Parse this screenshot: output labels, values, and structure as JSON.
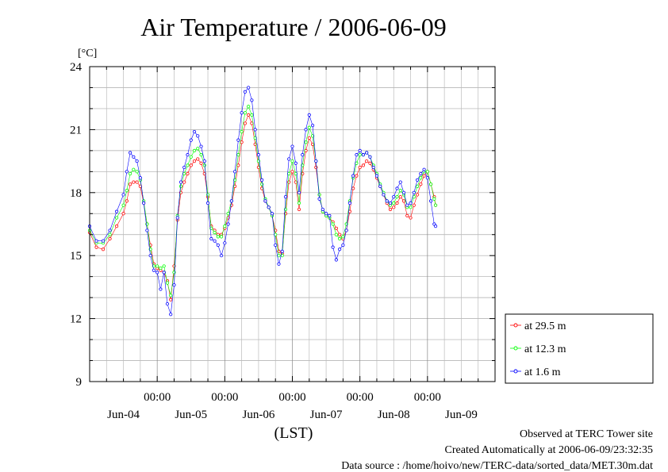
{
  "chart_data": {
    "type": "line",
    "title": "Air Temperature / 2006-06-09",
    "ylabel": "[°C]",
    "xlabel": "(LST)",
    "ylim": [
      9,
      24
    ],
    "yticks": [
      "9",
      "12",
      "15",
      "18",
      "21",
      "24"
    ],
    "xlim": [
      0,
      6
    ],
    "midnight_label": "00:00",
    "day_labels": [
      "Jun-04",
      "Jun-05",
      "Jun-06",
      "Jun-07",
      "Jun-08",
      "Jun-09"
    ],
    "grid": true,
    "legend_position": "right",
    "series": [
      {
        "name": "at 29.5 m",
        "color": "#ff0000",
        "values": [
          [
            0.0,
            16.1
          ],
          [
            0.1,
            15.4
          ],
          [
            0.2,
            15.3
          ],
          [
            0.3,
            15.8
          ],
          [
            0.4,
            16.4
          ],
          [
            0.5,
            17.0
          ],
          [
            0.55,
            17.6
          ],
          [
            0.6,
            18.4
          ],
          [
            0.65,
            18.5
          ],
          [
            0.7,
            18.5
          ],
          [
            0.75,
            18.3
          ],
          [
            0.8,
            17.5
          ],
          [
            0.85,
            16.5
          ],
          [
            0.9,
            15.5
          ],
          [
            0.95,
            14.6
          ],
          [
            1.0,
            14.4
          ],
          [
            1.05,
            14.3
          ],
          [
            1.1,
            14.2
          ],
          [
            1.15,
            13.8
          ],
          [
            1.2,
            12.9
          ],
          [
            1.25,
            14.5
          ],
          [
            1.3,
            16.7
          ],
          [
            1.35,
            18.0
          ],
          [
            1.4,
            18.5
          ],
          [
            1.45,
            18.9
          ],
          [
            1.5,
            19.3
          ],
          [
            1.55,
            19.5
          ],
          [
            1.6,
            19.6
          ],
          [
            1.65,
            19.4
          ],
          [
            1.7,
            18.9
          ],
          [
            1.75,
            17.8
          ],
          [
            1.8,
            16.4
          ],
          [
            1.85,
            16.2
          ],
          [
            1.9,
            16.0
          ],
          [
            1.95,
            16.0
          ],
          [
            2.0,
            16.3
          ],
          [
            2.05,
            16.8
          ],
          [
            2.1,
            17.4
          ],
          [
            2.15,
            18.3
          ],
          [
            2.2,
            19.3
          ],
          [
            2.25,
            20.4
          ],
          [
            2.3,
            21.3
          ],
          [
            2.35,
            21.7
          ],
          [
            2.4,
            21.3
          ],
          [
            2.45,
            20.3
          ],
          [
            2.5,
            19.2
          ],
          [
            2.55,
            18.2
          ],
          [
            2.6,
            17.6
          ],
          [
            2.65,
            17.3
          ],
          [
            2.7,
            16.9
          ],
          [
            2.75,
            16.2
          ],
          [
            2.8,
            15.2
          ],
          [
            2.85,
            15.1
          ],
          [
            2.9,
            17.0
          ],
          [
            2.95,
            18.5
          ],
          [
            3.0,
            19.0
          ],
          [
            3.05,
            18.5
          ],
          [
            3.1,
            17.2
          ],
          [
            3.15,
            18.9
          ],
          [
            3.2,
            20.0
          ],
          [
            3.25,
            20.6
          ],
          [
            3.3,
            20.3
          ],
          [
            3.35,
            19.2
          ],
          [
            3.4,
            17.9
          ],
          [
            3.45,
            17.1
          ],
          [
            3.5,
            16.9
          ],
          [
            3.55,
            16.8
          ],
          [
            3.6,
            16.6
          ],
          [
            3.65,
            16.3
          ],
          [
            3.7,
            16.0
          ],
          [
            3.75,
            15.8
          ],
          [
            3.8,
            16.2
          ],
          [
            3.85,
            17.1
          ],
          [
            3.9,
            18.2
          ],
          [
            3.95,
            18.8
          ],
          [
            4.0,
            19.2
          ],
          [
            4.05,
            19.3
          ],
          [
            4.1,
            19.5
          ],
          [
            4.15,
            19.4
          ],
          [
            4.2,
            19.1
          ],
          [
            4.25,
            18.7
          ],
          [
            4.3,
            18.3
          ],
          [
            4.35,
            17.9
          ],
          [
            4.4,
            17.5
          ],
          [
            4.45,
            17.2
          ],
          [
            4.5,
            17.3
          ],
          [
            4.55,
            17.5
          ],
          [
            4.6,
            17.8
          ],
          [
            4.65,
            17.6
          ],
          [
            4.7,
            16.9
          ],
          [
            4.75,
            16.8
          ],
          [
            4.8,
            17.4
          ],
          [
            4.85,
            17.9
          ],
          [
            4.9,
            18.4
          ],
          [
            4.95,
            18.8
          ],
          [
            5.0,
            19.0
          ],
          [
            5.05,
            18.4
          ],
          [
            5.1,
            17.8
          ],
          [
            5.12,
            17.4
          ]
        ]
      },
      {
        "name": "at 12.3 m",
        "color": "#00ff00",
        "values": [
          [
            0.0,
            16.2
          ],
          [
            0.1,
            15.6
          ],
          [
            0.2,
            15.6
          ],
          [
            0.3,
            16.0
          ],
          [
            0.4,
            16.8
          ],
          [
            0.5,
            17.4
          ],
          [
            0.55,
            18.1
          ],
          [
            0.6,
            18.9
          ],
          [
            0.65,
            19.1
          ],
          [
            0.7,
            19.0
          ],
          [
            0.75,
            18.6
          ],
          [
            0.8,
            17.6
          ],
          [
            0.85,
            16.5
          ],
          [
            0.9,
            15.3
          ],
          [
            0.95,
            14.5
          ],
          [
            1.0,
            14.5
          ],
          [
            1.05,
            14.4
          ],
          [
            1.1,
            14.5
          ],
          [
            1.15,
            13.7
          ],
          [
            1.2,
            13.1
          ],
          [
            1.25,
            14.2
          ],
          [
            1.3,
            16.9
          ],
          [
            1.35,
            18.3
          ],
          [
            1.4,
            18.9
          ],
          [
            1.45,
            19.3
          ],
          [
            1.5,
            19.7
          ],
          [
            1.55,
            20.0
          ],
          [
            1.6,
            20.1
          ],
          [
            1.65,
            19.8
          ],
          [
            1.7,
            19.3
          ],
          [
            1.75,
            17.9
          ],
          [
            1.8,
            16.3
          ],
          [
            1.85,
            16.1
          ],
          [
            1.9,
            15.9
          ],
          [
            1.95,
            15.9
          ],
          [
            2.0,
            16.4
          ],
          [
            2.05,
            17.0
          ],
          [
            2.1,
            17.6
          ],
          [
            2.15,
            18.6
          ],
          [
            2.2,
            19.8
          ],
          [
            2.25,
            20.9
          ],
          [
            2.3,
            21.8
          ],
          [
            2.35,
            22.1
          ],
          [
            2.4,
            21.7
          ],
          [
            2.45,
            20.6
          ],
          [
            2.5,
            19.5
          ],
          [
            2.55,
            18.4
          ],
          [
            2.6,
            17.7
          ],
          [
            2.65,
            17.3
          ],
          [
            2.7,
            16.9
          ],
          [
            2.75,
            16.0
          ],
          [
            2.8,
            15.0
          ],
          [
            2.85,
            15.0
          ],
          [
            2.9,
            17.2
          ],
          [
            2.95,
            18.9
          ],
          [
            3.0,
            19.5
          ],
          [
            3.05,
            18.9
          ],
          [
            3.1,
            17.5
          ],
          [
            3.15,
            19.3
          ],
          [
            3.2,
            20.4
          ],
          [
            3.25,
            21.1
          ],
          [
            3.3,
            20.7
          ],
          [
            3.35,
            19.5
          ],
          [
            3.4,
            17.9
          ],
          [
            3.45,
            17.1
          ],
          [
            3.5,
            16.9
          ],
          [
            3.55,
            16.8
          ],
          [
            3.6,
            16.5
          ],
          [
            3.65,
            16.0
          ],
          [
            3.7,
            15.8
          ],
          [
            3.75,
            15.9
          ],
          [
            3.8,
            16.5
          ],
          [
            3.85,
            17.6
          ],
          [
            3.9,
            18.7
          ],
          [
            3.95,
            19.4
          ],
          [
            4.0,
            19.8
          ],
          [
            4.05,
            19.8
          ],
          [
            4.1,
            19.9
          ],
          [
            4.15,
            19.7
          ],
          [
            4.2,
            19.3
          ],
          [
            4.25,
            18.9
          ],
          [
            4.3,
            18.4
          ],
          [
            4.35,
            18.0
          ],
          [
            4.4,
            17.6
          ],
          [
            4.45,
            17.4
          ],
          [
            4.5,
            17.5
          ],
          [
            4.55,
            17.8
          ],
          [
            4.6,
            18.1
          ],
          [
            4.65,
            17.9
          ],
          [
            4.7,
            17.3
          ],
          [
            4.75,
            17.3
          ],
          [
            4.8,
            17.8
          ],
          [
            4.85,
            18.3
          ],
          [
            4.9,
            18.7
          ],
          [
            4.95,
            19.0
          ],
          [
            5.0,
            19.0
          ],
          [
            5.05,
            18.4
          ],
          [
            5.1,
            17.7
          ],
          [
            5.12,
            17.4
          ]
        ]
      },
      {
        "name": "at 1.6 m",
        "color": "#0000ff",
        "values": [
          [
            0.0,
            16.4
          ],
          [
            0.1,
            15.7
          ],
          [
            0.2,
            15.7
          ],
          [
            0.3,
            16.2
          ],
          [
            0.4,
            17.1
          ],
          [
            0.5,
            17.9
          ],
          [
            0.55,
            19.0
          ],
          [
            0.6,
            19.9
          ],
          [
            0.65,
            19.7
          ],
          [
            0.7,
            19.5
          ],
          [
            0.75,
            18.7
          ],
          [
            0.8,
            17.5
          ],
          [
            0.85,
            16.2
          ],
          [
            0.9,
            15.0
          ],
          [
            0.95,
            14.3
          ],
          [
            1.0,
            14.2
          ],
          [
            1.05,
            13.4
          ],
          [
            1.1,
            14.2
          ],
          [
            1.15,
            12.7
          ],
          [
            1.2,
            12.2
          ],
          [
            1.25,
            13.6
          ],
          [
            1.3,
            16.8
          ],
          [
            1.35,
            18.5
          ],
          [
            1.4,
            19.2
          ],
          [
            1.45,
            19.8
          ],
          [
            1.5,
            20.5
          ],
          [
            1.55,
            20.9
          ],
          [
            1.6,
            20.7
          ],
          [
            1.65,
            20.2
          ],
          [
            1.7,
            19.5
          ],
          [
            1.75,
            17.5
          ],
          [
            1.8,
            15.8
          ],
          [
            1.85,
            15.7
          ],
          [
            1.9,
            15.5
          ],
          [
            1.95,
            15.0
          ],
          [
            2.0,
            15.6
          ],
          [
            2.05,
            16.5
          ],
          [
            2.1,
            17.6
          ],
          [
            2.15,
            19.0
          ],
          [
            2.2,
            20.5
          ],
          [
            2.25,
            21.8
          ],
          [
            2.3,
            22.8
          ],
          [
            2.35,
            23.0
          ],
          [
            2.4,
            22.4
          ],
          [
            2.45,
            21.0
          ],
          [
            2.5,
            19.8
          ],
          [
            2.55,
            18.6
          ],
          [
            2.6,
            17.6
          ],
          [
            2.65,
            17.3
          ],
          [
            2.7,
            17.0
          ],
          [
            2.75,
            15.5
          ],
          [
            2.8,
            14.6
          ],
          [
            2.85,
            15.2
          ],
          [
            2.9,
            17.8
          ],
          [
            2.95,
            19.6
          ],
          [
            3.0,
            20.2
          ],
          [
            3.05,
            19.4
          ],
          [
            3.1,
            18.0
          ],
          [
            3.15,
            19.8
          ],
          [
            3.2,
            21.0
          ],
          [
            3.25,
            21.7
          ],
          [
            3.3,
            21.2
          ],
          [
            3.35,
            19.5
          ],
          [
            3.4,
            17.7
          ],
          [
            3.45,
            17.2
          ],
          [
            3.5,
            17.0
          ],
          [
            3.55,
            16.9
          ],
          [
            3.6,
            15.4
          ],
          [
            3.65,
            14.8
          ],
          [
            3.7,
            15.3
          ],
          [
            3.75,
            15.5
          ],
          [
            3.8,
            16.2
          ],
          [
            3.85,
            17.5
          ],
          [
            3.9,
            18.8
          ],
          [
            3.95,
            19.8
          ],
          [
            4.0,
            20.0
          ],
          [
            4.05,
            19.8
          ],
          [
            4.1,
            19.9
          ],
          [
            4.15,
            19.7
          ],
          [
            4.2,
            19.2
          ],
          [
            4.25,
            18.8
          ],
          [
            4.3,
            18.3
          ],
          [
            4.35,
            17.9
          ],
          [
            4.4,
            17.6
          ],
          [
            4.45,
            17.5
          ],
          [
            4.5,
            17.8
          ],
          [
            4.55,
            18.2
          ],
          [
            4.6,
            18.5
          ],
          [
            4.65,
            18.0
          ],
          [
            4.7,
            17.4
          ],
          [
            4.75,
            17.5
          ],
          [
            4.8,
            18.0
          ],
          [
            4.85,
            18.6
          ],
          [
            4.9,
            18.9
          ],
          [
            4.95,
            19.1
          ],
          [
            5.0,
            18.7
          ],
          [
            5.05,
            17.6
          ],
          [
            5.1,
            16.5
          ],
          [
            5.12,
            16.4
          ]
        ]
      }
    ]
  },
  "footer": {
    "observed": "Observed at TERC Tower site",
    "created": "Created Automatically at 2006-06-09/23:32:35",
    "source": "Data source : /home/hoivo/new/TERC-data/sorted_data/MET.30m.dat"
  }
}
